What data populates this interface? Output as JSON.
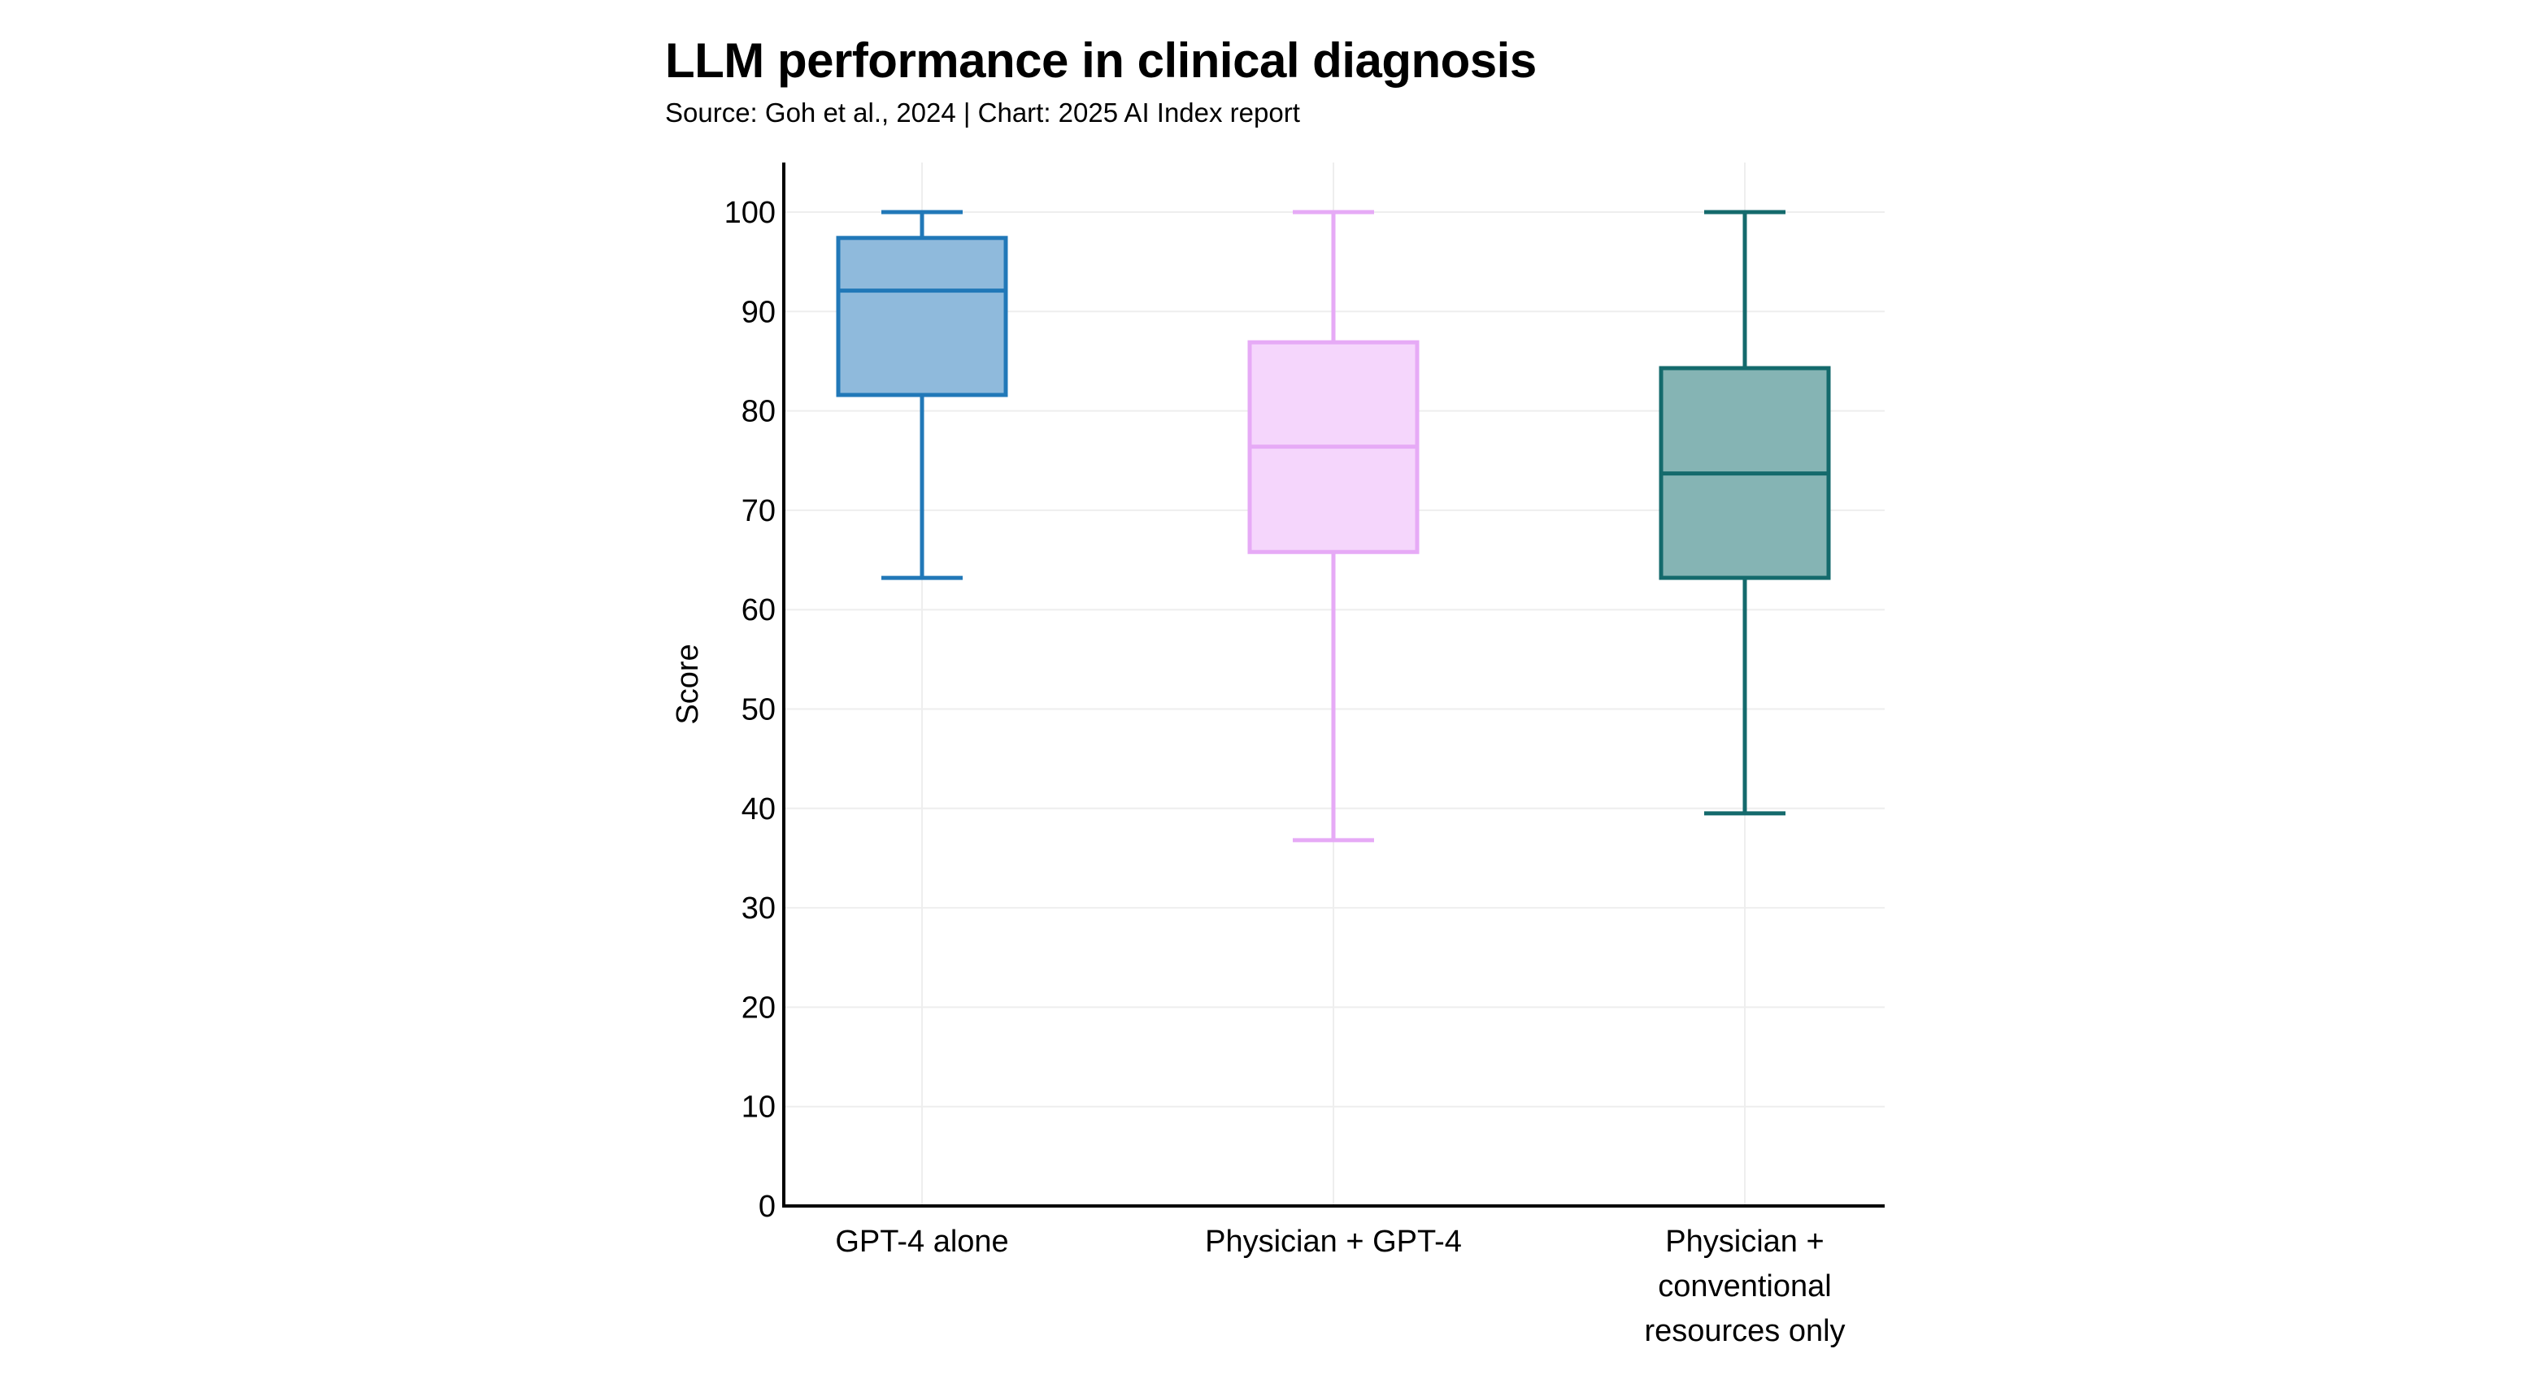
{
  "chart_data": {
    "type": "box",
    "title": "LLM performance in clinical diagnosis",
    "subtitle": "Source: Goh et al., 2024 | Chart: 2025 AI Index report",
    "xlabel": "",
    "ylabel": "Score",
    "ylim": [
      0,
      105
    ],
    "yticks": [
      0,
      10,
      20,
      30,
      40,
      50,
      60,
      70,
      80,
      90,
      100
    ],
    "grid": true,
    "categories": [
      [
        "GPT-4 alone"
      ],
      [
        "Physician + GPT-4"
      ],
      [
        "Physician +",
        "conventional",
        "resources only"
      ]
    ],
    "series": [
      {
        "name": "GPT-4 alone",
        "whisker_low": 63.2,
        "q1": 81.6,
        "median": 92.1,
        "q3": 97.4,
        "whisker_high": 100,
        "stroke": "#2178b8",
        "fill": "#8fbadc"
      },
      {
        "name": "Physician + GPT-4",
        "whisker_low": 36.8,
        "q1": 65.8,
        "median": 76.4,
        "q3": 86.9,
        "whisker_high": 100,
        "stroke": "#e6aaf6",
        "fill": "#f5d6fc"
      },
      {
        "name": "Physician + conventional resources only",
        "whisker_low": 39.5,
        "q1": 63.2,
        "median": 73.7,
        "q3": 84.3,
        "whisker_high": 100,
        "stroke": "#146a6c",
        "fill": "#85b4b4"
      }
    ]
  }
}
